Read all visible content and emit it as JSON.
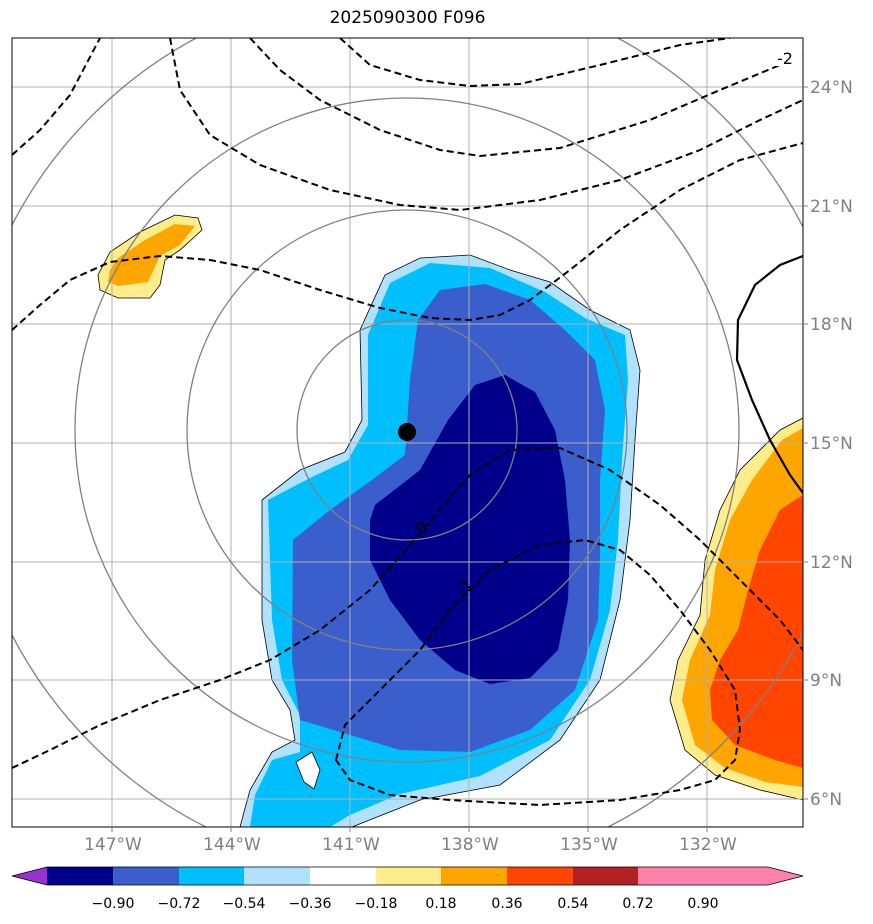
{
  "title": "2025090300 F096",
  "lat_labels": [
    "24°N",
    "21°N",
    "18°N",
    "15°N",
    "12°N",
    "9°N",
    "6°N"
  ],
  "lon_labels": [
    "147°W",
    "144°W",
    "141°W",
    "138°W",
    "135°W",
    "132°W"
  ],
  "contour_labels": [
    "0",
    "-1",
    "-2"
  ],
  "colorbar": {
    "ticks": [
      "−0.90",
      "−0.72",
      "−0.54",
      "−0.36",
      "−0.18",
      "0.18",
      "0.36",
      "0.54",
      "0.72",
      "0.90"
    ],
    "colors": [
      "#9932cc",
      "#00008b",
      "#3a5fcd",
      "#00bfff",
      "#b0e2ff",
      "#ffffff",
      "#ffec8b",
      "#ffa500",
      "#ff4500",
      "#b22222",
      "#ff82ab"
    ]
  },
  "storm_center": {
    "lat": 15.3,
    "lon": -139.3
  }
}
